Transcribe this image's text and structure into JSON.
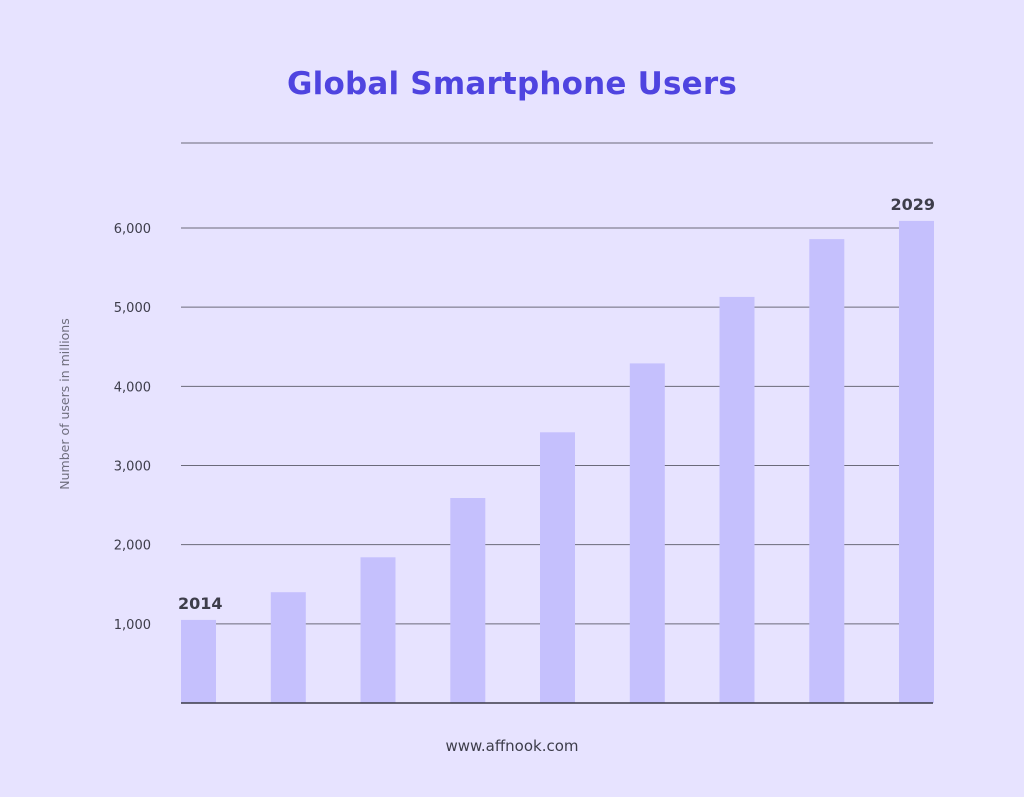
{
  "title": "Global Smartphone Users",
  "footer": "www.affnook.com",
  "colors": {
    "background": "#e7e3ff",
    "title": "#4f44e0",
    "bar": "#c5c0fd",
    "gridline": "#6b6a7a",
    "text": "#3d3d4a",
    "axis_label": "#6f6e7e"
  },
  "chart_data": {
    "type": "bar",
    "title": "Global Smartphone Users",
    "xlabel": "",
    "ylabel": "Number of users in millions",
    "ylim": [
      0,
      6000
    ],
    "y_ticks": [
      "1,000",
      "2,000",
      "3,000",
      "4,000",
      "5,000",
      "6,000"
    ],
    "grid": true,
    "categories": [
      "2014",
      "",
      "",
      "",
      "",
      "",
      "",
      "",
      "2029"
    ],
    "values": [
      1050,
      1400,
      1840,
      2590,
      3420,
      4290,
      5130,
      5860,
      6090
    ],
    "annotations": [
      "2014",
      "2029"
    ]
  }
}
